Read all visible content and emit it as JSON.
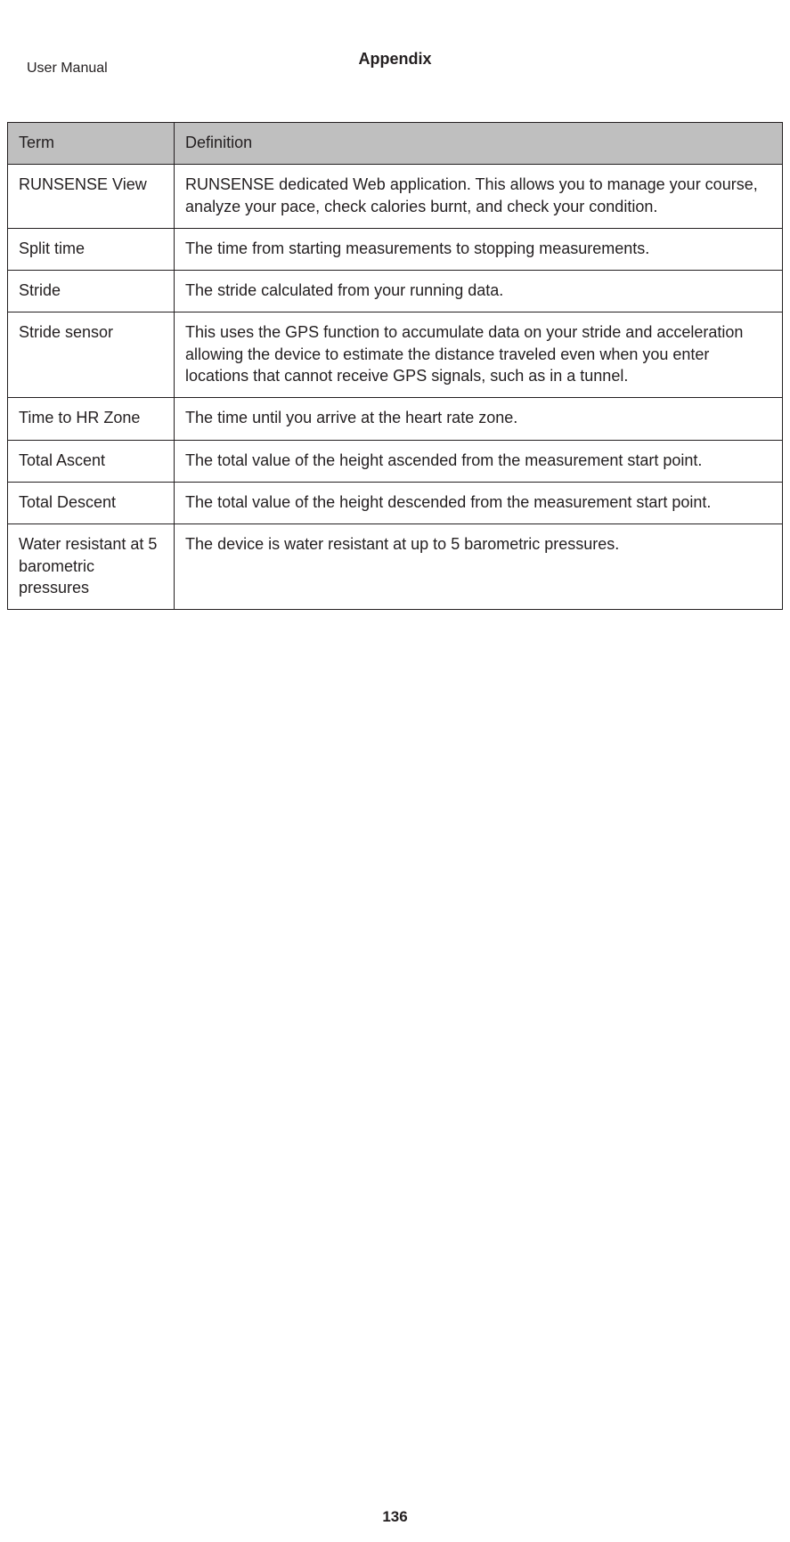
{
  "header_label": "User Manual",
  "section_title": "Appendix",
  "page_number": "136",
  "table": {
    "columns": [
      "Term",
      "Definition"
    ],
    "rows": [
      {
        "term": "RUNSENSE View",
        "definition": "RUNSENSE dedicated Web application. This allows you to manage your course, analyze your pace, check calories burnt, and check your condition."
      },
      {
        "term": "Split time",
        "definition": "The time from starting measurements to stopping measurements."
      },
      {
        "term": "Stride",
        "definition": "The stride calculated from your running data."
      },
      {
        "term": "Stride sensor",
        "definition": "This uses the GPS function to accumulate data on your stride and acceleration allowing the device to estimate the distance traveled even when you enter locations that cannot receive GPS signals, such as in a tunnel."
      },
      {
        "term": "Time to HR Zone",
        "definition": "The time until you arrive at the heart rate zone."
      },
      {
        "term": "Total Ascent",
        "definition": "The total value of the height ascended from the measurement start point."
      },
      {
        "term": "Total Descent",
        "definition": "The total value of the height descended from the measurement start point."
      },
      {
        "term": "Water resistant at 5 barometric pressures",
        "definition": "The device is water resistant at up to 5 barometric pressures."
      }
    ]
  },
  "colors": {
    "page_bg": "#ffffff",
    "text": "#231f20",
    "table_border": "#231f20",
    "table_header_bg": "#bfbfbf"
  },
  "typography": {
    "body_fontsize_pt": 13,
    "title_fontsize_pt": 13,
    "page_number_fontsize_pt": 12
  }
}
